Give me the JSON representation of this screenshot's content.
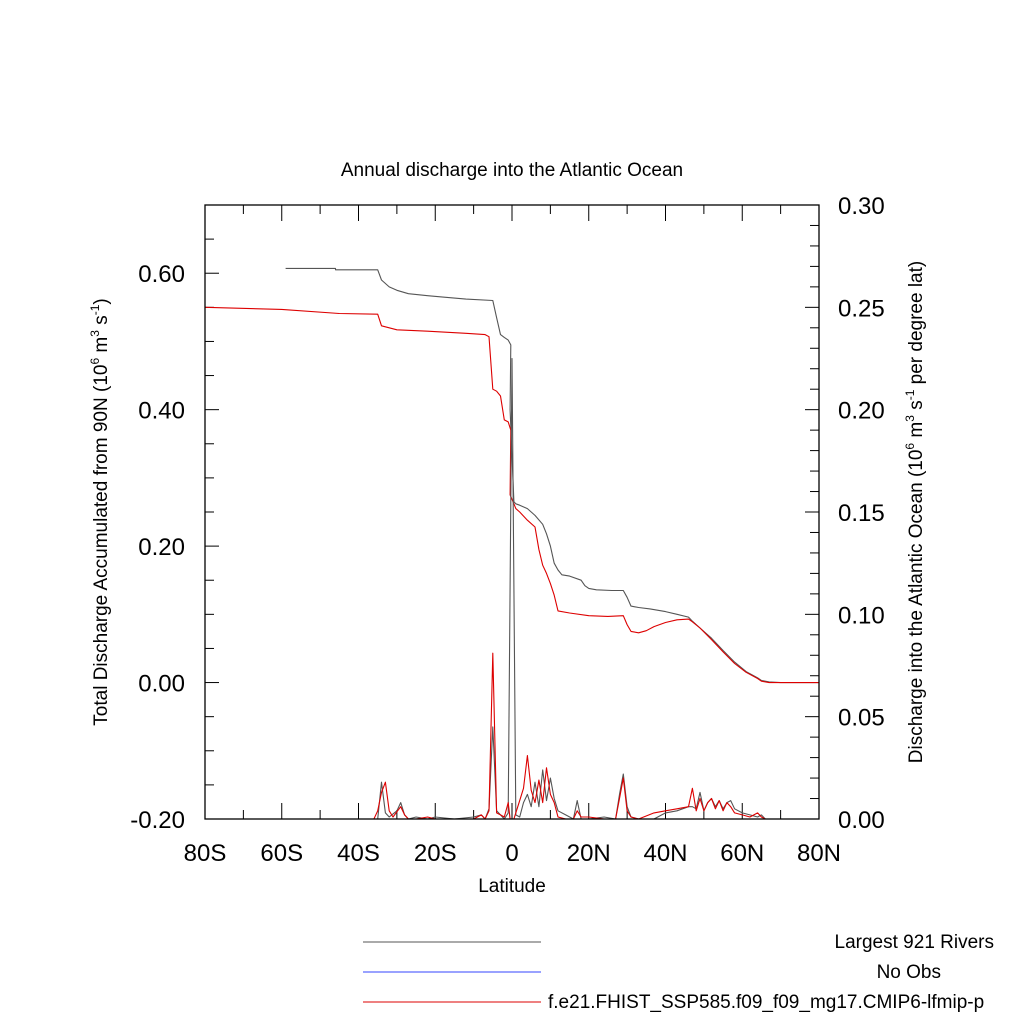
{
  "chart_data": {
    "type": "line",
    "title": "Annual discharge into the Atlantic Ocean",
    "xlabel": "Latitude",
    "ylabel_left_main": "Total Discharge Accumulated from 90N (10",
    "ylabel_left_sup1": "6",
    "ylabel_left_mid": " m",
    "ylabel_left_sup2": "3",
    "ylabel_left_mid2": " s",
    "ylabel_left_sup3": "-1",
    "ylabel_left_end": ")",
    "ylabel_right_main": "Discharge into the Atlantic Ocean (10",
    "ylabel_right_sup1": "6",
    "ylabel_right_mid": " m",
    "ylabel_right_sup2": "3",
    "ylabel_right_mid2": " s",
    "ylabel_right_sup3": "-1",
    "ylabel_right_end": " per degree lat)",
    "xlim": [
      -80,
      80
    ],
    "ylim_left": [
      -0.2,
      0.7
    ],
    "ylim_right": [
      0.0,
      0.3
    ],
    "x_ticks": [
      {
        "value": -80,
        "label": "80S"
      },
      {
        "value": -60,
        "label": "60S"
      },
      {
        "value": -40,
        "label": "40S"
      },
      {
        "value": -20,
        "label": "20S"
      },
      {
        "value": 0,
        "label": "0"
      },
      {
        "value": 20,
        "label": "20N"
      },
      {
        "value": 40,
        "label": "40N"
      },
      {
        "value": 60,
        "label": "60N"
      },
      {
        "value": 80,
        "label": "80N"
      }
    ],
    "y_left_ticks": [
      {
        "value": -0.2,
        "label": "-0.20"
      },
      {
        "value": 0.0,
        "label": "0.00"
      },
      {
        "value": 0.2,
        "label": "0.20"
      },
      {
        "value": 0.4,
        "label": "0.40"
      },
      {
        "value": 0.6,
        "label": "0.60"
      }
    ],
    "y_right_ticks": [
      {
        "value": 0.0,
        "label": "0.00"
      },
      {
        "value": 0.05,
        "label": "0.05"
      },
      {
        "value": 0.1,
        "label": "0.10"
      },
      {
        "value": 0.15,
        "label": "0.15"
      },
      {
        "value": 0.2,
        "label": "0.20"
      },
      {
        "value": 0.25,
        "label": "0.25"
      },
      {
        "value": 0.3,
        "label": "0.30"
      }
    ],
    "legend": [
      {
        "label": "Largest 921 Rivers",
        "color": "#555555"
      },
      {
        "label": "No Obs",
        "color": "#3344ff"
      },
      {
        "label": "f.e21.FHIST_SSP585.f09_f09_mg17.CMIP6-lfmip-p",
        "color": "#dd0000"
      }
    ],
    "series": [
      {
        "color": "#555555",
        "axis": "left",
        "x": [
          -59,
          -46,
          -46,
          -35,
          -34,
          -32,
          -30,
          -27,
          -22,
          -18,
          -12,
          -5,
          -4,
          -3,
          -2,
          -1,
          -0.3,
          -0.5,
          0.5,
          1,
          2,
          4,
          6,
          8,
          9,
          10,
          11,
          12,
          13,
          15,
          18,
          19,
          20,
          22,
          26,
          29,
          30,
          31,
          33,
          36,
          40,
          43,
          46,
          47,
          49,
          52,
          55,
          58,
          61,
          64,
          65,
          67,
          70,
          80
        ],
        "y": [
          0.607,
          0.607,
          0.605,
          0.605,
          0.59,
          0.58,
          0.575,
          0.57,
          0.567,
          0.565,
          0.562,
          0.56,
          0.535,
          0.51,
          0.506,
          0.502,
          0.495,
          0.4,
          0.265,
          0.262,
          0.26,
          0.255,
          0.245,
          0.232,
          0.218,
          0.2,
          0.175,
          0.165,
          0.158,
          0.156,
          0.15,
          0.142,
          0.138,
          0.136,
          0.135,
          0.135,
          0.125,
          0.112,
          0.11,
          0.108,
          0.104,
          0.1,
          0.096,
          0.09,
          0.08,
          0.065,
          0.047,
          0.03,
          0.016,
          0.007,
          0.003,
          0.001,
          0.0,
          0.0
        ]
      },
      {
        "color": "#dd0000",
        "axis": "left",
        "x": [
          -80,
          -60,
          -45,
          -35,
          -34,
          -30,
          -22,
          -12,
          -7,
          -6,
          -5,
          -4,
          -3,
          -2,
          -1,
          -0.3,
          -0.5,
          0.5,
          1,
          2,
          4,
          6,
          7,
          8,
          9,
          10,
          11,
          12,
          15,
          20,
          25,
          29,
          30,
          31,
          33,
          35,
          37,
          40,
          43,
          46,
          47,
          49,
          52,
          55,
          58,
          61,
          64,
          65,
          67,
          70,
          80
        ],
        "y": [
          0.55,
          0.547,
          0.541,
          0.54,
          0.523,
          0.517,
          0.515,
          0.512,
          0.51,
          0.507,
          0.43,
          0.427,
          0.42,
          0.385,
          0.382,
          0.37,
          0.275,
          0.262,
          0.255,
          0.25,
          0.238,
          0.228,
          0.195,
          0.172,
          0.16,
          0.145,
          0.128,
          0.105,
          0.102,
          0.098,
          0.097,
          0.098,
          0.085,
          0.075,
          0.073,
          0.076,
          0.082,
          0.088,
          0.092,
          0.093,
          0.089,
          0.08,
          0.063,
          0.045,
          0.028,
          0.015,
          0.006,
          0.002,
          0.0,
          0.0,
          0.0
        ]
      },
      {
        "color": "#555555",
        "axis": "right",
        "x": [
          -80,
          -50,
          -40,
          -36,
          -35,
          -34,
          -33,
          -32,
          -30,
          -29,
          -28,
          -27,
          -25,
          -22,
          -20,
          -15,
          -10,
          -8,
          -7,
          -6,
          -5,
          -4,
          -3,
          -2,
          -1,
          0,
          1,
          2,
          3,
          4,
          5,
          6,
          7,
          8,
          9,
          10,
          11,
          12,
          14,
          16,
          17,
          18,
          20,
          24,
          27,
          28,
          29,
          30,
          31,
          33,
          37,
          40,
          43,
          46,
          47,
          48,
          49,
          50,
          51,
          52,
          53,
          54,
          55,
          56,
          57,
          58,
          60,
          62,
          64,
          65,
          66,
          70,
          80
        ],
        "y": [
          0.0,
          0.0,
          0.0,
          0.0,
          0.0,
          0.018,
          0.003,
          0.001,
          0.004,
          0.008,
          0.002,
          0.0,
          0.001,
          0.0,
          0.001,
          0.0,
          0.001,
          0.002,
          0.0,
          0.005,
          0.045,
          0.004,
          0.002,
          0.0,
          0.003,
          0.225,
          0.002,
          0.001,
          0.008,
          0.012,
          0.006,
          0.018,
          0.006,
          0.024,
          0.009,
          0.02,
          0.01,
          0.004,
          0.002,
          0.0,
          0.009,
          0.0,
          0.0,
          0.001,
          0.0,
          0.012,
          0.022,
          0.006,
          0.001,
          0.0,
          0.0,
          0.003,
          0.004,
          0.006,
          0.006,
          0.005,
          0.013,
          0.004,
          0.008,
          0.01,
          0.006,
          0.009,
          0.005,
          0.008,
          0.009,
          0.005,
          0.003,
          0.002,
          0.001,
          0.002,
          0.0,
          0.0,
          0.0
        ]
      },
      {
        "color": "#dd0000",
        "axis": "right",
        "x": [
          -80,
          -40,
          -36,
          -35,
          -34,
          -33,
          -32,
          -31,
          -29,
          -28,
          -27,
          -25,
          -22,
          -20,
          -15,
          -10,
          -8,
          -7,
          -6,
          -5,
          -4,
          -3,
          -2,
          -1,
          -0.5,
          0,
          0.5,
          1,
          2,
          3,
          4,
          5,
          6,
          7,
          8,
          9,
          10,
          11,
          12,
          14,
          16,
          17,
          18,
          20,
          24,
          27,
          28,
          29,
          30,
          31,
          33,
          37,
          40,
          43,
          46,
          47,
          48,
          49,
          50,
          51,
          52,
          53,
          54,
          55,
          56,
          57,
          58,
          60,
          62,
          64,
          65,
          66,
          70,
          80
        ],
        "y": [
          0.0,
          0.0,
          0.0,
          0.004,
          0.013,
          0.018,
          0.004,
          0.001,
          0.006,
          0.002,
          0.0,
          0.0,
          0.001,
          0.0,
          0.0,
          0.0,
          0.002,
          0.0,
          0.004,
          0.081,
          0.003,
          0.002,
          0.001,
          0.008,
          0.0,
          0.0,
          0.0,
          0.003,
          0.009,
          0.015,
          0.031,
          0.014,
          0.008,
          0.019,
          0.008,
          0.025,
          0.012,
          0.008,
          0.001,
          0.0,
          0.0,
          0.004,
          0.001,
          0.001,
          0.0,
          0.0,
          0.01,
          0.02,
          0.004,
          0.001,
          0.0,
          0.003,
          0.004,
          0.005,
          0.006,
          0.015,
          0.004,
          0.01,
          0.004,
          0.008,
          0.01,
          0.005,
          0.009,
          0.004,
          0.008,
          0.006,
          0.003,
          0.002,
          0.001,
          0.003,
          0.001,
          0.0,
          0.0,
          0.0
        ]
      }
    ]
  }
}
